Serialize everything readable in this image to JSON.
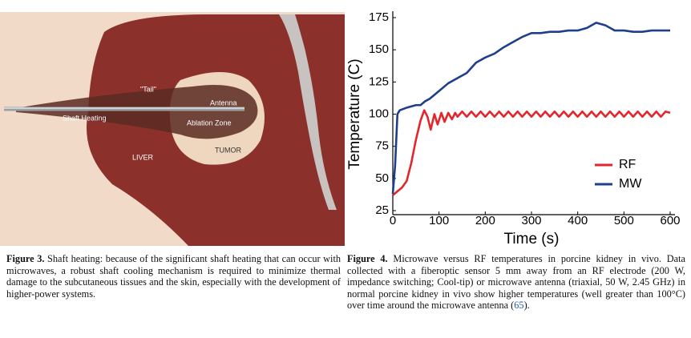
{
  "figure3": {
    "labels": {
      "tail": "\"Tail\"",
      "antenna": "Antenna",
      "shaft_heating": "Shaft Heating",
      "ablation_zone": "Ablation Zone",
      "tumor": "TUMOR",
      "liver": "LIVER"
    },
    "caption_label": "Figure 3.",
    "caption_text": "Shaft heating: because of the significant shaft heating that can occur with microwaves, a robust shaft cooling mechanism is required to minimize thermal damage to the subcutaneous tissues and the skin, especially with the development of higher-power systems."
  },
  "chart_data": {
    "type": "line",
    "xlabel": "Time (s)",
    "ylabel": "Temperature (C)",
    "xlim": [
      0,
      600
    ],
    "xticks": [
      0,
      100,
      200,
      300,
      400,
      500,
      600
    ],
    "ylim": [
      25,
      175
    ],
    "yticks": [
      25,
      50,
      75,
      100,
      125,
      150,
      175
    ],
    "legend": "lower right",
    "series": [
      {
        "name": "RF",
        "color": "#e3262c",
        "x": [
          0,
          10,
          20,
          30,
          40,
          50,
          60,
          68,
          75,
          82,
          90,
          97,
          105,
          112,
          120,
          128,
          135,
          140,
          150,
          160,
          170,
          180,
          190,
          200,
          210,
          220,
          230,
          240,
          250,
          260,
          270,
          280,
          290,
          300,
          310,
          320,
          330,
          340,
          350,
          360,
          370,
          380,
          390,
          400,
          410,
          420,
          430,
          440,
          450,
          460,
          470,
          480,
          490,
          500,
          510,
          520,
          530,
          540,
          550,
          560,
          570,
          580,
          590,
          600
        ],
        "values": [
          37,
          40,
          43,
          48,
          62,
          80,
          95,
          103,
          98,
          88,
          100,
          92,
          101,
          94,
          101,
          96,
          101,
          98,
          102,
          98,
          102,
          98,
          102,
          98,
          102,
          98,
          102,
          98,
          102,
          98,
          102,
          98,
          102,
          98,
          102,
          98,
          102,
          98,
          102,
          98,
          102,
          98,
          102,
          98,
          102,
          98,
          102,
          98,
          102,
          98,
          102,
          98,
          102,
          98,
          102,
          98,
          102,
          98,
          102,
          98,
          102,
          98,
          102,
          101
        ]
      },
      {
        "name": "MW",
        "color": "#1f3f8c",
        "x": [
          0,
          5,
          10,
          15,
          30,
          50,
          60,
          70,
          80,
          100,
          120,
          140,
          160,
          180,
          200,
          220,
          240,
          260,
          280,
          300,
          320,
          340,
          360,
          380,
          400,
          420,
          440,
          460,
          480,
          500,
          520,
          540,
          560,
          580,
          600
        ],
        "values": [
          38,
          60,
          100,
          103,
          105,
          107,
          107,
          110,
          112,
          118,
          124,
          128,
          132,
          140,
          144,
          147,
          152,
          156,
          160,
          163,
          163,
          164,
          164,
          165,
          165,
          167,
          171,
          169,
          165,
          165,
          164,
          164,
          165,
          165,
          165
        ]
      }
    ]
  },
  "figure4": {
    "caption_label": "Figure 4.",
    "caption_text": "Microwave versus RF temperatures in porcine kidney in vivo. Data collected with a fiberoptic sensor 5 mm away from an RF electrode (200 W, impedance switching; Cool-tip) or microwave antenna (triaxial, 50 W, 2.45 GHz) in normal porcine kidney in vivo show higher temperatures (well greater than 100°C) over time around the microwave antenna (",
    "caption_ref": "65",
    "caption_end": ")."
  }
}
